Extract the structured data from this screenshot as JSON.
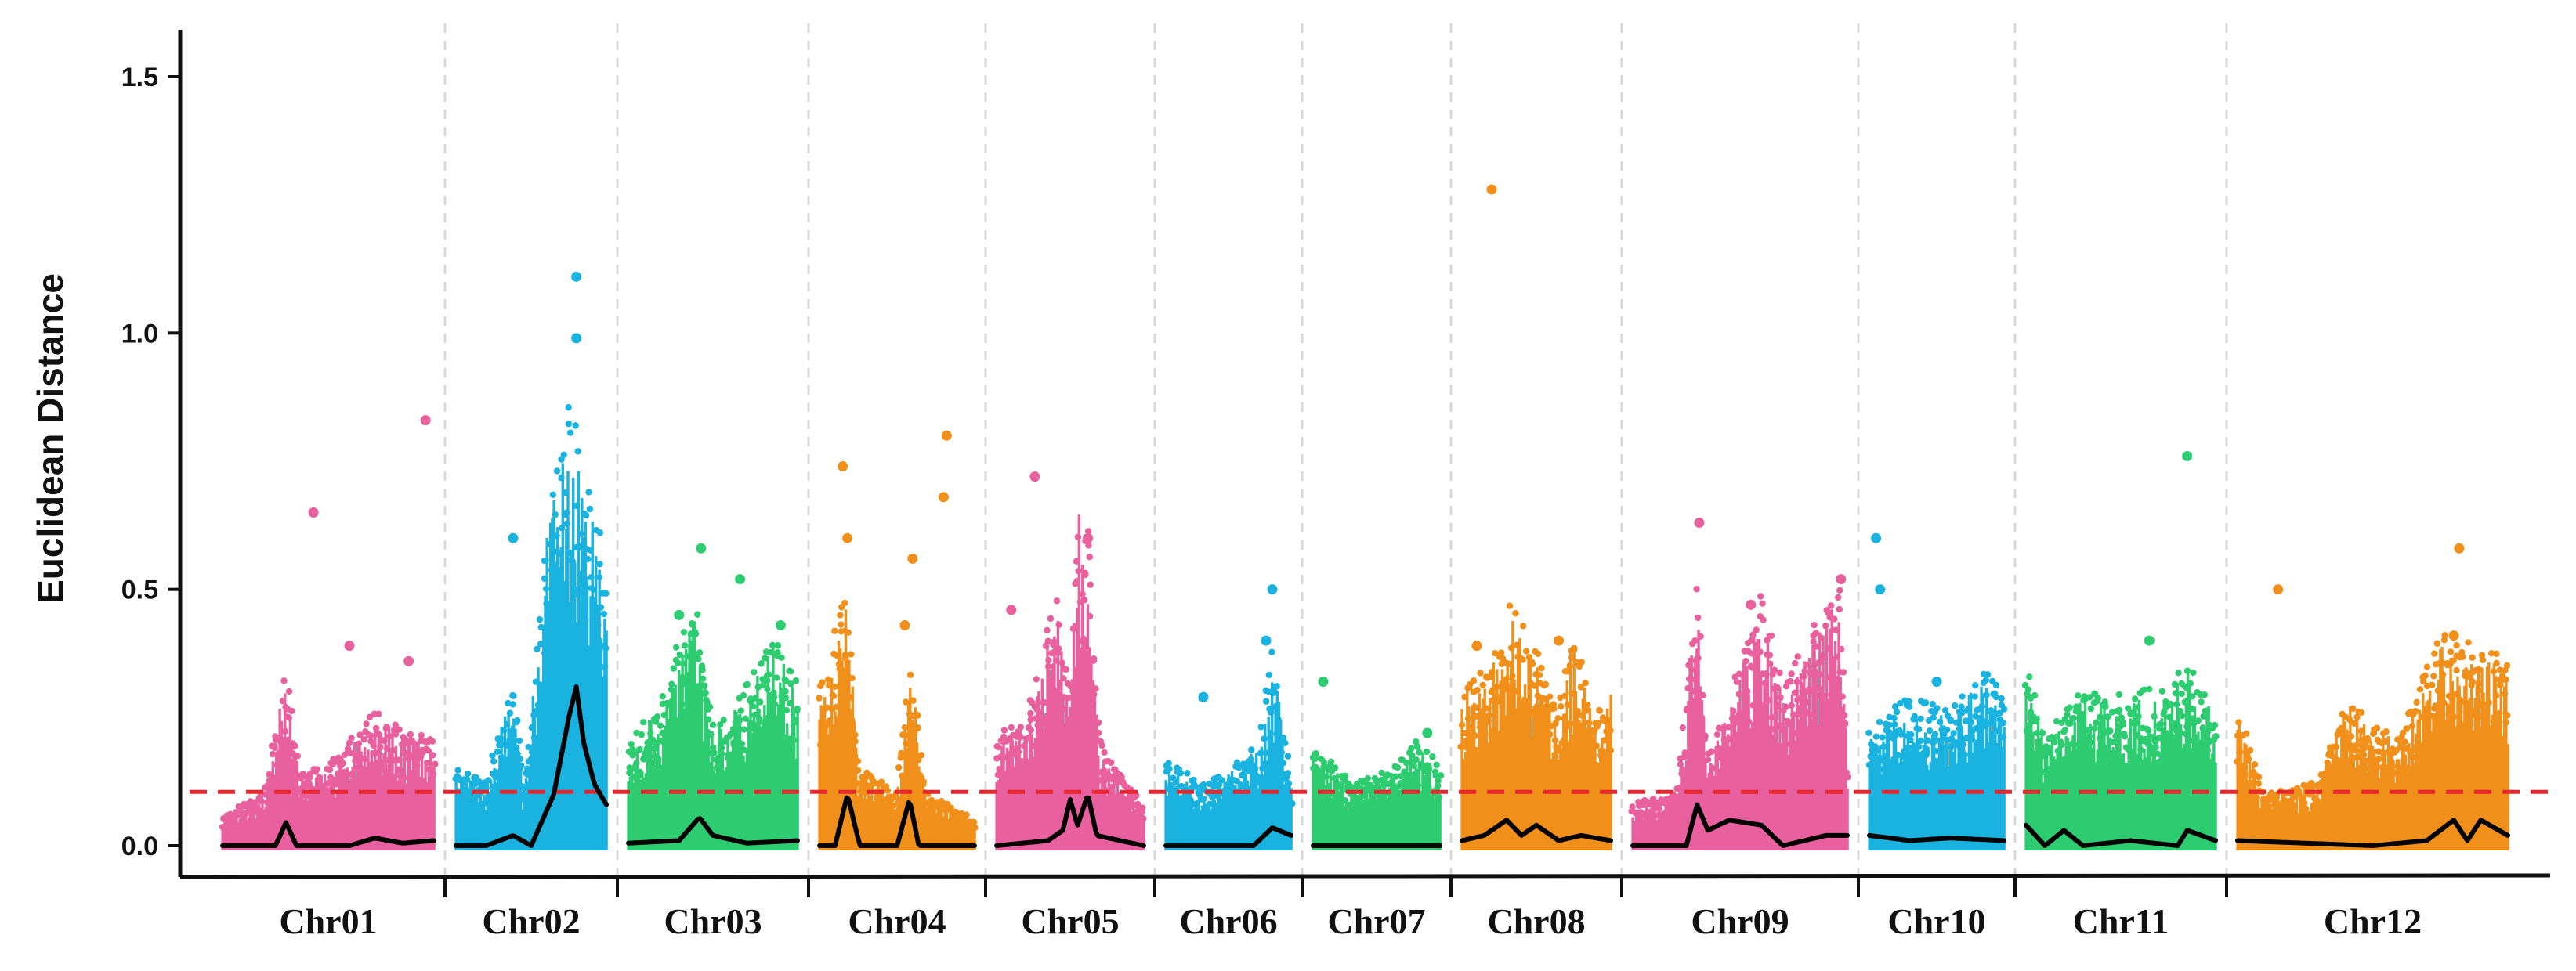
{
  "chart_data": {
    "type": "scatter",
    "title": "",
    "xlabel": "",
    "ylabel": "Euclidean Distance",
    "ylim": [
      -0.03,
      1.6
    ],
    "yticks": [
      {
        "value": 0.0,
        "label": "0.0"
      },
      {
        "value": 0.5,
        "label": "0.5"
      },
      {
        "value": 1.0,
        "label": "1.0"
      },
      {
        "value": 1.5,
        "label": "1.5"
      }
    ],
    "threshold": {
      "value": 0.105,
      "color": "#e8262e",
      "style": "dashed"
    },
    "smoothed_line_color": "#000000",
    "colors": {
      "pink": "#e8609e",
      "cyan": "#1ab3e0",
      "green": "#2ecc71",
      "orange": "#f0901a"
    },
    "chromosomes": [
      {
        "label": "Chr01",
        "color": "pink",
        "base": [
          [
            0,
            0.06
          ],
          [
            0.2,
            0.1
          ],
          [
            0.3,
            0.36
          ],
          [
            0.36,
            0.14
          ],
          [
            0.5,
            0.15
          ],
          [
            0.72,
            0.25
          ],
          [
            0.85,
            0.22
          ],
          [
            1,
            0.2
          ]
        ],
        "outliers": [
          [
            0.43,
            0.65
          ],
          [
            0.6,
            0.39
          ],
          [
            0.96,
            0.83
          ],
          [
            0.88,
            0.36
          ]
        ],
        "smooth": [
          [
            0,
            0.0
          ],
          [
            0.25,
            0.0
          ],
          [
            0.3,
            0.045
          ],
          [
            0.35,
            0.0
          ],
          [
            0.6,
            0.0
          ],
          [
            0.72,
            0.015
          ],
          [
            0.85,
            0.005
          ],
          [
            1,
            0.01
          ]
        ]
      },
      {
        "label": "Chr02",
        "color": "cyan",
        "base": [
          [
            0,
            0.15
          ],
          [
            0.2,
            0.12
          ],
          [
            0.38,
            0.32
          ],
          [
            0.45,
            0.1
          ],
          [
            0.6,
            0.6
          ],
          [
            0.75,
            0.86
          ],
          [
            0.85,
            0.7
          ],
          [
            1,
            0.55
          ]
        ],
        "outliers": [
          [
            0.38,
            0.6
          ],
          [
            0.8,
            1.11
          ],
          [
            0.8,
            0.99
          ]
        ],
        "smooth": [
          [
            0,
            0.0
          ],
          [
            0.2,
            0.0
          ],
          [
            0.38,
            0.02
          ],
          [
            0.5,
            0.0
          ],
          [
            0.65,
            0.1
          ],
          [
            0.75,
            0.25
          ],
          [
            0.8,
            0.31
          ],
          [
            0.85,
            0.2
          ],
          [
            0.92,
            0.12
          ],
          [
            1,
            0.08
          ]
        ]
      },
      {
        "label": "Chr03",
        "color": "green",
        "base": [
          [
            0,
            0.2
          ],
          [
            0.2,
            0.28
          ],
          [
            0.4,
            0.48
          ],
          [
            0.5,
            0.22
          ],
          [
            0.7,
            0.3
          ],
          [
            0.85,
            0.4
          ],
          [
            1,
            0.3
          ]
        ],
        "outliers": [
          [
            0.43,
            0.58
          ],
          [
            0.66,
            0.52
          ],
          [
            0.3,
            0.45
          ],
          [
            0.9,
            0.43
          ]
        ],
        "smooth": [
          [
            0,
            0.005
          ],
          [
            0.3,
            0.01
          ],
          [
            0.42,
            0.055
          ],
          [
            0.5,
            0.02
          ],
          [
            0.7,
            0.005
          ],
          [
            1,
            0.01
          ]
        ]
      },
      {
        "label": "Chr04",
        "color": "orange",
        "base": [
          [
            0,
            0.3
          ],
          [
            0.18,
            0.48
          ],
          [
            0.25,
            0.15
          ],
          [
            0.5,
            0.1
          ],
          [
            0.6,
            0.38
          ],
          [
            0.68,
            0.1
          ],
          [
            1,
            0.05
          ]
        ],
        "outliers": [
          [
            0.15,
            0.74
          ],
          [
            0.18,
            0.6
          ],
          [
            0.55,
            0.43
          ],
          [
            0.6,
            0.56
          ],
          [
            0.82,
            0.8
          ],
          [
            0.8,
            0.68
          ]
        ],
        "smooth": [
          [
            0,
            0.0
          ],
          [
            0.1,
            0.0
          ],
          [
            0.18,
            0.1
          ],
          [
            0.26,
            0.0
          ],
          [
            0.5,
            0.0
          ],
          [
            0.58,
            0.09
          ],
          [
            0.64,
            0.0
          ],
          [
            1,
            0.0
          ]
        ]
      },
      {
        "label": "Chr05",
        "color": "pink",
        "base": [
          [
            0,
            0.2
          ],
          [
            0.2,
            0.25
          ],
          [
            0.4,
            0.47
          ],
          [
            0.5,
            0.3
          ],
          [
            0.55,
            0.66
          ],
          [
            0.62,
            0.6
          ],
          [
            0.7,
            0.2
          ],
          [
            1,
            0.07
          ]
        ],
        "outliers": [
          [
            0.26,
            0.72
          ],
          [
            0.1,
            0.46
          ],
          [
            0.62,
            0.6
          ]
        ],
        "smooth": [
          [
            0,
            0.0
          ],
          [
            0.35,
            0.01
          ],
          [
            0.45,
            0.03
          ],
          [
            0.5,
            0.09
          ],
          [
            0.55,
            0.04
          ],
          [
            0.62,
            0.1
          ],
          [
            0.68,
            0.02
          ],
          [
            1,
            0.0
          ]
        ]
      },
      {
        "label": "Chr06",
        "color": "cyan",
        "base": [
          [
            0,
            0.16
          ],
          [
            0.3,
            0.12
          ],
          [
            0.5,
            0.14
          ],
          [
            0.75,
            0.2
          ],
          [
            0.85,
            0.38
          ],
          [
            1,
            0.12
          ]
        ],
        "outliers": [
          [
            0.3,
            0.29
          ],
          [
            0.85,
            0.5
          ],
          [
            0.8,
            0.4
          ]
        ],
        "smooth": [
          [
            0,
            0.0
          ],
          [
            0.7,
            0.0
          ],
          [
            0.85,
            0.035
          ],
          [
            1,
            0.02
          ]
        ]
      },
      {
        "label": "Chr07",
        "color": "green",
        "base": [
          [
            0,
            0.2
          ],
          [
            0.3,
            0.12
          ],
          [
            0.6,
            0.14
          ],
          [
            0.8,
            0.2
          ],
          [
            1,
            0.15
          ]
        ],
        "outliers": [
          [
            0.08,
            0.32
          ],
          [
            0.9,
            0.22
          ]
        ],
        "smooth": [
          [
            0,
            0.0
          ],
          [
            0.5,
            0.0
          ],
          [
            1,
            0.0
          ]
        ]
      },
      {
        "label": "Chr08",
        "color": "orange",
        "base": [
          [
            0,
            0.3
          ],
          [
            0.2,
            0.35
          ],
          [
            0.3,
            0.47
          ],
          [
            0.5,
            0.36
          ],
          [
            0.65,
            0.28
          ],
          [
            0.75,
            0.4
          ],
          [
            0.9,
            0.25
          ],
          [
            1,
            0.3
          ]
        ],
        "outliers": [
          [
            0.2,
            1.28
          ],
          [
            0.1,
            0.39
          ],
          [
            0.65,
            0.4
          ]
        ],
        "smooth": [
          [
            0,
            0.01
          ],
          [
            0.15,
            0.02
          ],
          [
            0.3,
            0.05
          ],
          [
            0.4,
            0.02
          ],
          [
            0.5,
            0.04
          ],
          [
            0.65,
            0.01
          ],
          [
            0.8,
            0.02
          ],
          [
            1,
            0.01
          ]
        ]
      },
      {
        "label": "Chr09",
        "color": "pink",
        "base": [
          [
            0,
            0.08
          ],
          [
            0.2,
            0.1
          ],
          [
            0.3,
            0.5
          ],
          [
            0.35,
            0.15
          ],
          [
            0.6,
            0.48
          ],
          [
            0.7,
            0.3
          ],
          [
            0.9,
            0.45
          ],
          [
            0.97,
            0.5
          ],
          [
            1,
            0.2
          ]
        ],
        "outliers": [
          [
            0.31,
            0.63
          ],
          [
            0.55,
            0.47
          ],
          [
            0.97,
            0.52
          ]
        ],
        "smooth": [
          [
            0,
            0.0
          ],
          [
            0.25,
            0.0
          ],
          [
            0.3,
            0.08
          ],
          [
            0.35,
            0.03
          ],
          [
            0.45,
            0.05
          ],
          [
            0.6,
            0.04
          ],
          [
            0.7,
            0.0
          ],
          [
            0.9,
            0.02
          ],
          [
            1,
            0.02
          ]
        ]
      },
      {
        "label": "Chr10",
        "color": "cyan",
        "base": [
          [
            0,
            0.22
          ],
          [
            0.3,
            0.28
          ],
          [
            0.6,
            0.25
          ],
          [
            0.85,
            0.33
          ],
          [
            1,
            0.28
          ]
        ],
        "outliers": [
          [
            0.05,
            0.6
          ],
          [
            0.08,
            0.5
          ],
          [
            0.5,
            0.32
          ]
        ],
        "smooth": [
          [
            0,
            0.02
          ],
          [
            0.3,
            0.01
          ],
          [
            0.6,
            0.015
          ],
          [
            1,
            0.01
          ]
        ]
      },
      {
        "label": "Chr11",
        "color": "green",
        "base": [
          [
            0,
            0.36
          ],
          [
            0.1,
            0.2
          ],
          [
            0.3,
            0.3
          ],
          [
            0.5,
            0.28
          ],
          [
            0.75,
            0.3
          ],
          [
            0.85,
            0.35
          ],
          [
            1,
            0.25
          ]
        ],
        "outliers": [
          [
            0.65,
            0.4
          ],
          [
            0.85,
            0.76
          ]
        ],
        "smooth": [
          [
            0,
            0.04
          ],
          [
            0.1,
            0.0
          ],
          [
            0.2,
            0.03
          ],
          [
            0.3,
            0.0
          ],
          [
            0.55,
            0.01
          ],
          [
            0.8,
            0.0
          ],
          [
            0.85,
            0.03
          ],
          [
            1,
            0.01
          ]
        ]
      },
      {
        "label": "Chr12",
        "color": "orange",
        "base": [
          [
            0,
            0.26
          ],
          [
            0.1,
            0.1
          ],
          [
            0.3,
            0.12
          ],
          [
            0.4,
            0.28
          ],
          [
            0.6,
            0.2
          ],
          [
            0.75,
            0.4
          ],
          [
            0.85,
            0.38
          ],
          [
            1,
            0.35
          ]
        ],
        "outliers": [
          [
            0.15,
            0.5
          ],
          [
            0.82,
            0.58
          ],
          [
            0.8,
            0.41
          ]
        ],
        "smooth": [
          [
            0,
            0.01
          ],
          [
            0.5,
            0.0
          ],
          [
            0.7,
            0.01
          ],
          [
            0.8,
            0.05
          ],
          [
            0.85,
            0.01
          ],
          [
            0.9,
            0.05
          ],
          [
            1,
            0.02
          ]
        ]
      }
    ]
  }
}
